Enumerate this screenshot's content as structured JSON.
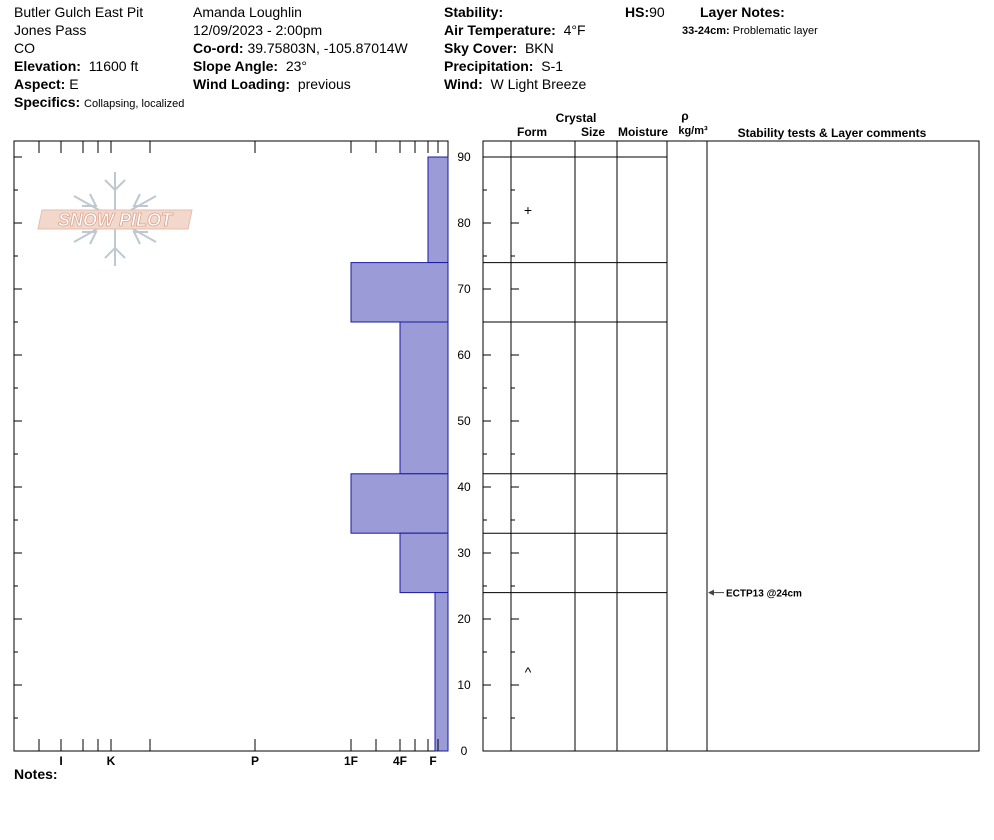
{
  "header": {
    "pit_name": "Butler Gulch East Pit",
    "location": "Jones Pass",
    "state": "CO",
    "elevation_label": "Elevation:",
    "elevation": "11600 ft",
    "aspect_label": "Aspect:",
    "aspect": "E",
    "specifics_label": "Specifics:",
    "specifics": "Collapsing, localized",
    "observer": "Amanda Loughlin",
    "datetime": "12/09/2023 - 2:00pm",
    "coord_label": "Co-ord:",
    "coord": "39.75803N, -105.87014W",
    "slope_label": "Slope Angle:",
    "slope": "23°",
    "wind_loading_label": "Wind Loading:",
    "wind_loading": "previous",
    "stability_label": "Stability:",
    "air_temp_label": "Air Temperature:",
    "air_temp": "4°F",
    "sky_label": "Sky Cover:",
    "sky": "BKN",
    "precip_label": "Precipitation:",
    "precip": "S-1",
    "wind_label": "Wind:",
    "wind": "W Light Breeze",
    "hs_label": "HS:",
    "hs": "90",
    "layer_notes_label": "Layer Notes:",
    "layer_note_range": "33-24cm:",
    "layer_note_text": "Problematic layer"
  },
  "logo": {
    "text": "SNOW PILOT"
  },
  "columns": {
    "crystal": "Crystal",
    "form": "Form",
    "size": "Size",
    "moisture": "Moisture",
    "rho": "ρ",
    "density_unit": "kg/m³",
    "comments": "Stability tests & Layer comments"
  },
  "notes_label": "Notes:",
  "chart_data": {
    "type": "bar",
    "orientation": "horizontal",
    "description": "Snow profile hand-hardness by depth (cm above ground)",
    "y_axis": {
      "range": [
        0,
        90
      ],
      "ticks": [
        0,
        10,
        20,
        30,
        40,
        50,
        60,
        70,
        80,
        90
      ]
    },
    "x_axis": {
      "ticks": [
        "I",
        "K",
        "P",
        "1F",
        "4F",
        "F"
      ],
      "direction": "hardness increases to the left"
    },
    "layers": [
      {
        "top": 90,
        "bottom": 74,
        "hardness": "F"
      },
      {
        "top": 74,
        "bottom": 65,
        "hardness": "1F"
      },
      {
        "top": 65,
        "bottom": 42,
        "hardness": "4F"
      },
      {
        "top": 42,
        "bottom": 33,
        "hardness": "1F"
      },
      {
        "top": 33,
        "bottom": 24,
        "hardness": "4F"
      },
      {
        "top": 24,
        "bottom": 0,
        "hardness": "F-"
      }
    ],
    "layer_boundaries": [
      90,
      74,
      65,
      42,
      33,
      24
    ],
    "grain_forms": [
      {
        "height": 82,
        "symbol": "+"
      },
      {
        "height": 12,
        "symbol": "^"
      }
    ],
    "test_results": [
      {
        "height": 24,
        "label": "ECTP13 @24cm"
      }
    ],
    "colors": {
      "bar_fill": "#9b9bd8",
      "bar_stroke": "#1a1aa0"
    }
  }
}
